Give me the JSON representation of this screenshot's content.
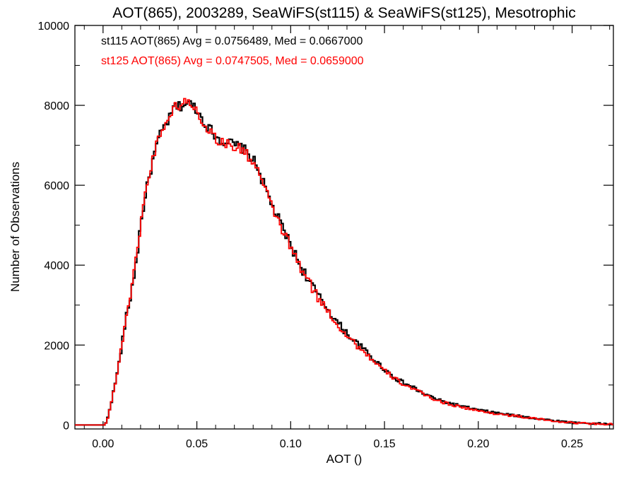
{
  "chart_data": {
    "type": "histogram",
    "title": "AOT(865), 2003289, SeaWiFS(st115) & SeaWiFS(st125), Mesotrophic",
    "xlabel": "AOT ()",
    "ylabel": "Number of Observations",
    "xlim": [
      -0.015,
      0.272
    ],
    "ylim": [
      -100,
      10000
    ],
    "x_ticks": [
      0.0,
      0.05,
      0.1,
      0.15,
      0.2,
      0.25
    ],
    "x_tick_labels": [
      "0.00",
      "0.05",
      "0.10",
      "0.15",
      "0.20",
      "0.25"
    ],
    "y_ticks": [
      0,
      2000,
      4000,
      6000,
      8000,
      10000
    ],
    "y_tick_labels": [
      "0",
      "2000",
      "4000",
      "6000",
      "8000",
      "10000"
    ],
    "grid": false,
    "legend_position": "top-left",
    "bin_width": 0.001,
    "x_start": -0.015,
    "series": [
      {
        "name": "st115",
        "color": "#000000",
        "legend_text": "st115 AOT(865) Avg = 0.0756489, Med = 0.0667000",
        "keypoints": [
          [
            -0.015,
            0
          ],
          [
            0.001,
            0
          ],
          [
            0.002,
            80
          ],
          [
            0.003,
            300
          ],
          [
            0.005,
            700
          ],
          [
            0.008,
            1400
          ],
          [
            0.01,
            2000
          ],
          [
            0.012,
            2600
          ],
          [
            0.015,
            3300
          ],
          [
            0.018,
            4200
          ],
          [
            0.02,
            5000
          ],
          [
            0.022,
            5600
          ],
          [
            0.025,
            6300
          ],
          [
            0.028,
            6900
          ],
          [
            0.03,
            7200
          ],
          [
            0.033,
            7500
          ],
          [
            0.036,
            7700
          ],
          [
            0.038,
            8000
          ],
          [
            0.04,
            7950
          ],
          [
            0.043,
            8020
          ],
          [
            0.045,
            8050
          ],
          [
            0.048,
            8000
          ],
          [
            0.05,
            7900
          ],
          [
            0.053,
            7650
          ],
          [
            0.056,
            7450
          ],
          [
            0.06,
            7250
          ],
          [
            0.063,
            7100
          ],
          [
            0.066,
            7100
          ],
          [
            0.07,
            7000
          ],
          [
            0.074,
            6950
          ],
          [
            0.078,
            6750
          ],
          [
            0.082,
            6500
          ],
          [
            0.085,
            6100
          ],
          [
            0.09,
            5500
          ],
          [
            0.095,
            5000
          ],
          [
            0.1,
            4500
          ],
          [
            0.105,
            4000
          ],
          [
            0.11,
            3600
          ],
          [
            0.115,
            3200
          ],
          [
            0.12,
            2900
          ],
          [
            0.125,
            2550
          ],
          [
            0.13,
            2300
          ],
          [
            0.135,
            2050
          ],
          [
            0.14,
            1850
          ],
          [
            0.145,
            1600
          ],
          [
            0.15,
            1400
          ],
          [
            0.155,
            1200
          ],
          [
            0.16,
            1050
          ],
          [
            0.165,
            950
          ],
          [
            0.17,
            800
          ],
          [
            0.175,
            700
          ],
          [
            0.18,
            600
          ],
          [
            0.19,
            480
          ],
          [
            0.2,
            370
          ],
          [
            0.21,
            300
          ],
          [
            0.22,
            230
          ],
          [
            0.23,
            170
          ],
          [
            0.24,
            110
          ],
          [
            0.25,
            60
          ],
          [
            0.26,
            40
          ],
          [
            0.272,
            20
          ]
        ]
      },
      {
        "name": "st125",
        "color": "#ff0000",
        "legend_text": "st125 AOT(865) Avg = 0.0747505, Med = 0.0659000",
        "keypoints": [
          [
            -0.015,
            0
          ],
          [
            0.001,
            0
          ],
          [
            0.002,
            80
          ],
          [
            0.003,
            300
          ],
          [
            0.005,
            700
          ],
          [
            0.008,
            1400
          ],
          [
            0.01,
            2000
          ],
          [
            0.012,
            2650
          ],
          [
            0.015,
            3350
          ],
          [
            0.018,
            4250
          ],
          [
            0.02,
            5050
          ],
          [
            0.022,
            5650
          ],
          [
            0.025,
            6350
          ],
          [
            0.028,
            6950
          ],
          [
            0.03,
            7250
          ],
          [
            0.033,
            7550
          ],
          [
            0.036,
            7750
          ],
          [
            0.038,
            7950
          ],
          [
            0.04,
            8000
          ],
          [
            0.043,
            8050
          ],
          [
            0.045,
            8100
          ],
          [
            0.048,
            8000
          ],
          [
            0.05,
            7850
          ],
          [
            0.053,
            7600
          ],
          [
            0.056,
            7400
          ],
          [
            0.06,
            7200
          ],
          [
            0.063,
            7050
          ],
          [
            0.066,
            7050
          ],
          [
            0.07,
            6950
          ],
          [
            0.074,
            6900
          ],
          [
            0.078,
            6700
          ],
          [
            0.082,
            6450
          ],
          [
            0.085,
            6050
          ],
          [
            0.09,
            5450
          ],
          [
            0.095,
            4950
          ],
          [
            0.1,
            4450
          ],
          [
            0.105,
            3950
          ],
          [
            0.11,
            3550
          ],
          [
            0.115,
            3150
          ],
          [
            0.12,
            2850
          ],
          [
            0.125,
            2500
          ],
          [
            0.13,
            2250
          ],
          [
            0.135,
            2000
          ],
          [
            0.14,
            1800
          ],
          [
            0.145,
            1550
          ],
          [
            0.15,
            1350
          ],
          [
            0.155,
            1180
          ],
          [
            0.16,
            1020
          ],
          [
            0.165,
            920
          ],
          [
            0.17,
            780
          ],
          [
            0.175,
            680
          ],
          [
            0.18,
            580
          ],
          [
            0.19,
            460
          ],
          [
            0.2,
            350
          ],
          [
            0.21,
            280
          ],
          [
            0.22,
            220
          ],
          [
            0.23,
            160
          ],
          [
            0.24,
            100
          ],
          [
            0.25,
            55
          ],
          [
            0.26,
            35
          ],
          [
            0.272,
            15
          ]
        ]
      }
    ]
  }
}
